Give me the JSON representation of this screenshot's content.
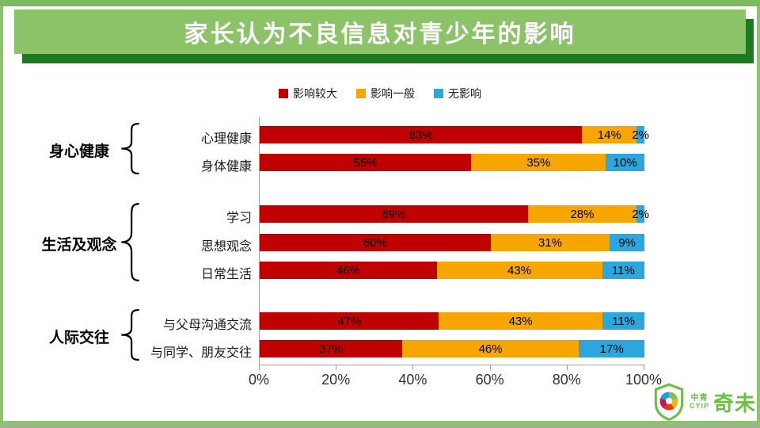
{
  "title": "家长认为不良信息对青少年的影响",
  "theme": {
    "banner_green": "#8cc369",
    "banner_shadow_green": "#1d7a1f",
    "frame_green": "#8cc46c",
    "frame_top_green": "#7bba5d"
  },
  "legend": {
    "items": [
      {
        "key": "big",
        "label": "影响较大",
        "color": "#c00000"
      },
      {
        "key": "mid",
        "label": "影响一般",
        "color": "#f7a600"
      },
      {
        "key": "none",
        "label": "无影响",
        "color": "#2ba7de"
      }
    ]
  },
  "chart_data": {
    "type": "bar",
    "orientation": "horizontal",
    "stacked": true,
    "title": "家长认为不良信息对青少年的影响",
    "unit": "%",
    "categories": [
      "心理健康",
      "身体健康",
      "学习",
      "思想观念",
      "日常生活",
      "与父母沟通交流",
      "与同学、朋友交往"
    ],
    "groups": [
      {
        "name": "身心健康",
        "from": 0,
        "to": 1
      },
      {
        "name": "生活及观念",
        "from": 2,
        "to": 4
      },
      {
        "name": "人际交往",
        "from": 5,
        "to": 6
      }
    ],
    "series": [
      {
        "key": "big",
        "name": "影响较大",
        "color": "#c00000",
        "values": [
          83,
          55,
          69,
          60,
          46,
          47,
          37
        ]
      },
      {
        "key": "mid",
        "name": "影响一般",
        "color": "#f7a600",
        "values": [
          14,
          35,
          28,
          31,
          43,
          43,
          46
        ]
      },
      {
        "key": "none",
        "name": "无影响",
        "color": "#2ba7de",
        "values": [
          2,
          10,
          2,
          9,
          11,
          11,
          17
        ]
      }
    ],
    "x_ticks": [
      "0%",
      "20%",
      "40%",
      "60%",
      "80%",
      "100%"
    ],
    "xlim": [
      0,
      100
    ],
    "legend_position": "top",
    "grid": false
  },
  "logo": {
    "text_small_top": "中青",
    "text_small_bottom": "CYIP",
    "text_large": "奇未"
  }
}
